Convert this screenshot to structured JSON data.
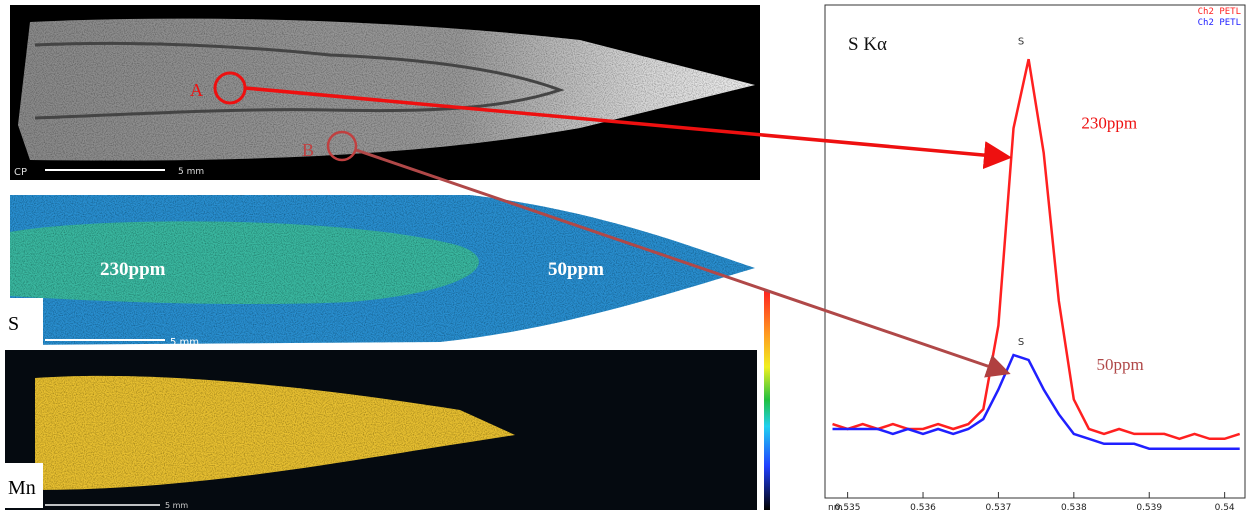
{
  "panels": {
    "sem": {
      "label_a": "A",
      "label_b": "B",
      "mode": "CP",
      "scale": "5 mm"
    },
    "sulfur_map": {
      "left_value": "230ppm",
      "right_value": "50ppm",
      "element": "S",
      "scale": "5 mm"
    },
    "manganese_map": {
      "element": "Mn",
      "scale": "5 mm"
    }
  },
  "chart_data": {
    "type": "line",
    "title": "S Kα",
    "x_label": "nm",
    "x": [
      0.5348,
      0.535,
      0.5352,
      0.5354,
      0.5356,
      0.5358,
      0.536,
      0.5362,
      0.5364,
      0.5366,
      0.5368,
      0.537,
      0.5372,
      0.5374,
      0.5376,
      0.5378,
      0.538,
      0.5382,
      0.5384,
      0.5386,
      0.5388,
      0.539,
      0.5392,
      0.5394,
      0.5396,
      0.5398,
      0.54,
      0.5402
    ],
    "series": [
      {
        "name": "Ch2 PETL",
        "color": "#ff2020",
        "values": [
          15,
          14,
          15,
          14,
          15,
          14,
          14,
          15,
          14,
          15,
          18,
          35,
          75,
          89,
          70,
          40,
          20,
          14,
          13,
          14,
          13,
          13,
          13,
          12,
          13,
          12,
          12,
          13
        ]
      },
      {
        "name": "Ch2 PETL",
        "color": "#2020ff",
        "values": [
          14,
          14,
          14,
          14,
          13,
          14,
          13,
          14,
          13,
          14,
          16,
          22,
          29,
          28,
          22,
          17,
          13,
          12,
          11,
          11,
          11,
          10,
          10,
          10,
          10,
          10,
          10,
          10
        ]
      }
    ],
    "annotations": [
      {
        "text": "S",
        "x": 0.5373,
        "y": 92
      },
      {
        "text": "S",
        "x": 0.5373,
        "y": 31
      },
      {
        "text": "230ppm",
        "x": 0.5381,
        "y": 75
      },
      {
        "text": "50ppm",
        "x": 0.5383,
        "y": 26
      }
    ],
    "xlim": [
      0.5347,
      0.54027
    ],
    "ylim": [
      0,
      100
    ],
    "xticks": [
      0.535,
      0.536,
      0.537,
      0.538,
      0.539,
      0.54
    ],
    "legend": "top-right"
  }
}
